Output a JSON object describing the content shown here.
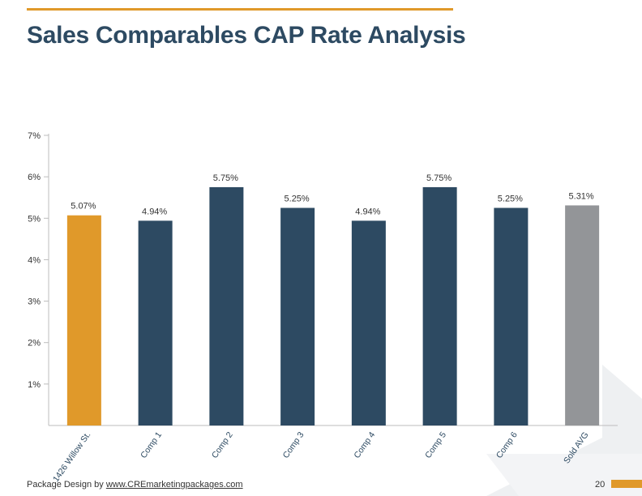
{
  "header": {
    "title": "Sales Comparables CAP Rate Analysis"
  },
  "footer": {
    "prefix": "Package Design by ",
    "link": "www.CREmarketingpackages.com",
    "page_number": "20"
  },
  "colors": {
    "accent": "#E0992A",
    "navy": "#2D4A62",
    "gray": "#939598",
    "deco": "#EEF0F2"
  },
  "chart_data": {
    "type": "bar",
    "categories": [
      "1426 Willow St.",
      "Comp 1",
      "Comp 2",
      "Comp 3",
      "Comp 4",
      "Comp 5",
      "Comp 6",
      "Sold AVG"
    ],
    "values": [
      5.07,
      4.94,
      5.75,
      5.25,
      4.94,
      5.75,
      5.25,
      5.31
    ],
    "value_labels": [
      "5.07%",
      "4.94%",
      "5.75%",
      "5.25%",
      "4.94%",
      "5.75%",
      "5.25%",
      "5.31%"
    ],
    "bar_colors": [
      "#E0992A",
      "#2D4A62",
      "#2D4A62",
      "#2D4A62",
      "#2D4A62",
      "#2D4A62",
      "#2D4A62",
      "#939598"
    ],
    "yticks": [
      1,
      2,
      3,
      4,
      5,
      6,
      7
    ],
    "ytick_labels": [
      "1%",
      "2%",
      "3%",
      "4%",
      "5%",
      "6%",
      "7%"
    ],
    "ylim": [
      0,
      7
    ],
    "title": "",
    "xlabel": "",
    "ylabel": "",
    "grid": false
  }
}
